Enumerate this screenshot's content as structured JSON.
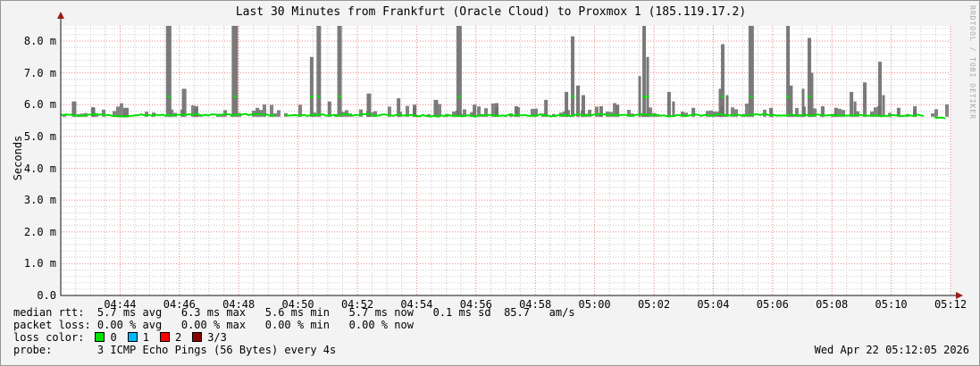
{
  "window": {
    "bg_color": "#f3f3f3",
    "border_color": "#979797",
    "canvas_color": "#ffffff"
  },
  "title": "Last 30 Minutes from Frankfurt (Oracle Cloud) to Proxmox 1 (185.119.17.2)",
  "signature": "RRDTOOL / TOBI OETIKER",
  "timestamp": "Wed Apr 22 05:12:05 2026",
  "legend": {
    "median_rtt_line": "median rtt:  5.7 ms avg   6.3 ms max   5.6 ms min   5.7 ms now   0.1 ms sd  85.7   am/s",
    "packet_loss_line": "packet loss: 0.00 % avg   0.00 % max   0.00 % min   0.00 % now",
    "loss_color_label": "loss color:",
    "loss_items": [
      {
        "label": "0",
        "color": "#00e000"
      },
      {
        "label": "1",
        "color": "#00b8ff"
      },
      {
        "label": "2",
        "color": "#ff0000"
      },
      {
        "label": "3/3",
        "color": "#8b0000"
      }
    ],
    "probe_line": "probe:       3 ICMP Echo Pings (56 Bytes) every 4s"
  },
  "chart_data": {
    "type": "line",
    "subtype": "smokeping-latency",
    "title": "Last 30 Minutes from Frankfurt (Oracle Cloud) to Proxmox 1 (185.119.17.2)",
    "xlabel": "",
    "ylabel": "Seconds",
    "x_start": "04:42",
    "x_end": "05:12",
    "x_minutes_total": 30,
    "x_ticks": [
      {
        "t": 2,
        "label": "04:44"
      },
      {
        "t": 4,
        "label": "04:46"
      },
      {
        "t": 6,
        "label": "04:48"
      },
      {
        "t": 8,
        "label": "04:50"
      },
      {
        "t": 10,
        "label": "04:52"
      },
      {
        "t": 12,
        "label": "04:54"
      },
      {
        "t": 14,
        "label": "04:56"
      },
      {
        "t": 16,
        "label": "04:58"
      },
      {
        "t": 18,
        "label": "05:00"
      },
      {
        "t": 20,
        "label": "05:02"
      },
      {
        "t": 22,
        "label": "05:04"
      },
      {
        "t": 24,
        "label": "05:06"
      },
      {
        "t": 26,
        "label": "05:08"
      },
      {
        "t": 28,
        "label": "05:10"
      },
      {
        "t": 30,
        "label": "05:12"
      }
    ],
    "y_ticks": [
      {
        "v": 0,
        "label": "0.0"
      },
      {
        "v": 1,
        "label": "1.0 m"
      },
      {
        "v": 2,
        "label": "2.0 m"
      },
      {
        "v": 3,
        "label": "3.0 m"
      },
      {
        "v": 4,
        "label": "4.0 m"
      },
      {
        "v": 5,
        "label": "5.0 m"
      },
      {
        "v": 6,
        "label": "6.0 m"
      },
      {
        "v": 7,
        "label": "7.0 m"
      },
      {
        "v": 8,
        "label": "8.0 m"
      }
    ],
    "ylim_ms": [
      0,
      8.48
    ],
    "grid": {
      "x_minor_min": 0.5,
      "y_minor_ms": 0.2,
      "on": true
    },
    "legend_position": "bottom",
    "median_baseline_ms": 5.7,
    "median_now_ms": 5.7,
    "median_min_ms": 5.6,
    "median_max_ms": 6.3,
    "line_gaps_t": [
      [
        7.3,
        7.56
      ],
      [
        29.17,
        29.42
      ]
    ],
    "tail_baseline_ms": 5.6,
    "smoke_spikes": [
      [
        0.45,
        6.1,
        5
      ],
      [
        1.1,
        5.9,
        4
      ],
      [
        2.2,
        5.9,
        6
      ],
      [
        3.64,
        8.6,
        6
      ],
      [
        4.16,
        6.5,
        5
      ],
      [
        4.55,
        5.9,
        4
      ],
      [
        5.87,
        8.6,
        7
      ],
      [
        6.63,
        5.9,
        4
      ],
      [
        8.46,
        7.5,
        4
      ],
      [
        8.7,
        8.6,
        5
      ],
      [
        9.06,
        6.1,
        4
      ],
      [
        9.4,
        8.6,
        5
      ],
      [
        10.39,
        6.35,
        5
      ],
      [
        11.39,
        6.2,
        4
      ],
      [
        11.93,
        6.0,
        4
      ],
      [
        12.65,
        6.15,
        5
      ],
      [
        13.43,
        8.6,
        6
      ],
      [
        13.95,
        6.0,
        4
      ],
      [
        14.7,
        6.05,
        4
      ],
      [
        15.36,
        5.95,
        4
      ],
      [
        16.36,
        6.15,
        4
      ],
      [
        17.05,
        6.4,
        4
      ],
      [
        17.26,
        8.15,
        4
      ],
      [
        17.44,
        6.6,
        4
      ],
      [
        17.62,
        6.3,
        4
      ],
      [
        18.22,
        5.95,
        4
      ],
      [
        18.77,
        6.0,
        4
      ],
      [
        19.52,
        6.9,
        3
      ],
      [
        19.67,
        8.6,
        4
      ],
      [
        19.79,
        7.5,
        3
      ],
      [
        20.51,
        6.4,
        4
      ],
      [
        20.66,
        6.1,
        3
      ],
      [
        21.33,
        5.9,
        4
      ],
      [
        22.23,
        6.5,
        3
      ],
      [
        22.32,
        7.9,
        4
      ],
      [
        22.47,
        6.3,
        3
      ],
      [
        23.28,
        8.6,
        6
      ],
      [
        23.95,
        5.9,
        4
      ],
      [
        24.52,
        8.6,
        4
      ],
      [
        24.62,
        6.6,
        4
      ],
      [
        25.03,
        6.5,
        3
      ],
      [
        25.24,
        8.1,
        4
      ],
      [
        25.33,
        7.0,
        3
      ],
      [
        25.69,
        5.95,
        4
      ],
      [
        26.14,
        5.9,
        4
      ],
      [
        26.66,
        6.4,
        4
      ],
      [
        26.78,
        6.1,
        3
      ],
      [
        27.11,
        6.7,
        4
      ],
      [
        27.62,
        7.35,
        4
      ],
      [
        27.74,
        6.3,
        3
      ],
      [
        28.25,
        5.9,
        4
      ],
      [
        28.8,
        5.95,
        4
      ]
    ],
    "colors": {
      "median_line": "#00df00",
      "smoke": "#6f6f6f",
      "grid_major": "#f08080",
      "grid_minor": "#c9c9c9",
      "axis": "#111111",
      "arrow": "#9b1b1b"
    }
  }
}
